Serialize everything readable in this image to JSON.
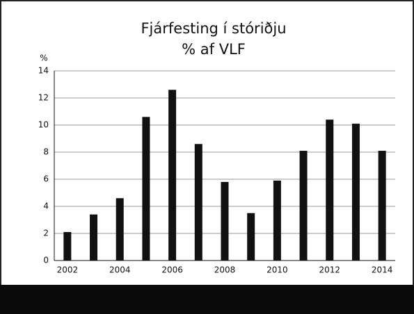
{
  "chart_data": {
    "type": "bar",
    "title": "Fjárfesting í stóriðju",
    "subtitle": "% af VLF",
    "ylabel": "%",
    "categories": [
      "2002",
      null,
      "2004",
      null,
      "2006",
      null,
      "2008",
      null,
      "2010",
      null,
      "2012",
      null,
      "2014"
    ],
    "values": [
      2.1,
      3.4,
      4.6,
      10.6,
      12.6,
      8.6,
      5.8,
      3.5,
      5.9,
      8.1,
      10.4,
      10.1,
      8.1
    ],
    "color": "#111111",
    "ylim": [
      0,
      14
    ],
    "yticks": [
      0,
      2,
      4,
      6,
      8,
      10,
      12,
      14
    ],
    "grid": true
  }
}
